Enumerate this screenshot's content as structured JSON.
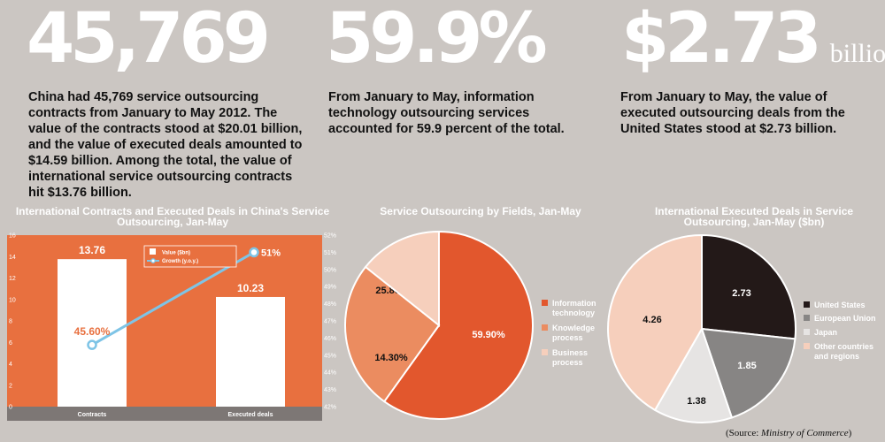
{
  "stats": [
    {
      "value": "45,769",
      "unit": "",
      "text": "China had 45,769 service outsourcing contracts from January to May 2012. The value of the contracts stood at $20.01 billion, and the value of executed deals amounted to $14.59 billion. Among the total, the value of international service outsourcing contracts hit $13.76 billion."
    },
    {
      "value": "59.9%",
      "unit": "",
      "text": "From January to May, information technology outsourcing services accounted for 59.9 percent of the total."
    },
    {
      "value": "$2.73",
      "unit": "billion",
      "text": "From January to May, the value of executed outsourcing deals from the United States stood at $2.73 billion."
    }
  ],
  "source": {
    "prefix": "(Source: ",
    "name": "Ministry of Commerce",
    "suffix": ")"
  },
  "colors": {
    "background": "#cbc6c2",
    "orange": "#e8703f",
    "bar": "#ffffff",
    "line": "#7ec4e6",
    "axis_bar": "#7d7775"
  },
  "chart_data": [
    {
      "type": "bar",
      "title": "International Contracts and Executed Deals in China's Service Outsourcing, Jan-May",
      "categories": [
        "Contracts",
        "Executed deals"
      ],
      "series": [
        {
          "name": "Value ($bn)",
          "type": "bar",
          "values": [
            13.76,
            10.23
          ],
          "labels": [
            "13.76",
            "10.23"
          ]
        },
        {
          "name": "Growth (y.o.y.)",
          "type": "line",
          "values": [
            45.6,
            51
          ],
          "labels": [
            "45.60%",
            "51%"
          ],
          "axis": "right"
        }
      ],
      "ylim": [
        0,
        16
      ],
      "yticks": [
        "0",
        "2",
        "4",
        "6",
        "8",
        "10",
        "12",
        "14",
        "16"
      ],
      "y2lim": [
        42,
        52
      ],
      "y2ticks": [
        "42%",
        "43%",
        "44%",
        "45%",
        "46%",
        "47%",
        "48%",
        "49%",
        "50%",
        "51%",
        "52%"
      ],
      "legend": "top-center"
    },
    {
      "type": "pie",
      "title": "Service Outsourcing by Fields, Jan-May",
      "slices": [
        {
          "label": "Information technology",
          "value": 59.9,
          "display": "59.90%",
          "color": "#e2572d",
          "text_color": "#ffffff"
        },
        {
          "label": "Knowledge process",
          "value": 25.8,
          "display": "25.80%",
          "color": "#eb8c60",
          "text_color": "#111111"
        },
        {
          "label": "Business process",
          "value": 14.3,
          "display": "14.30%",
          "color": "#f6cfbc",
          "text_color": "#111111"
        }
      ],
      "legend": "right"
    },
    {
      "type": "pie",
      "title": "International Executed Deals in Service Outsourcing, Jan-May ($bn)",
      "slices": [
        {
          "label": "United States",
          "value": 2.73,
          "display": "2.73",
          "color": "#231918",
          "text_color": "#ffffff"
        },
        {
          "label": "European Union",
          "value": 1.85,
          "display": "1.85",
          "color": "#878584",
          "text_color": "#ffffff"
        },
        {
          "label": "Japan",
          "value": 1.38,
          "display": "1.38",
          "color": "#e6e4e3",
          "text_color": "#111111"
        },
        {
          "label": "Other countries and regions",
          "value": 4.26,
          "display": "4.26",
          "color": "#f6cfbc",
          "text_color": "#111111"
        }
      ],
      "legend": "right"
    }
  ]
}
